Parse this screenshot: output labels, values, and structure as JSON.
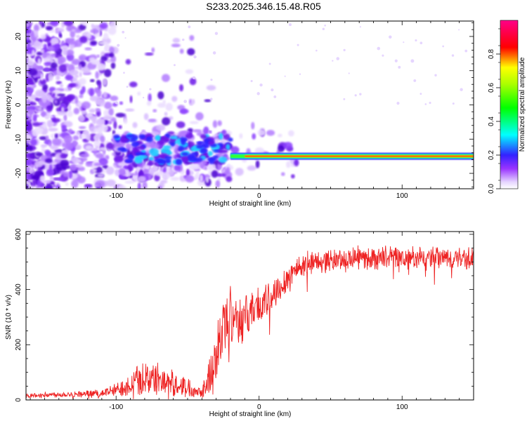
{
  "figure": {
    "title": "S233.2025.346.15.48.R05"
  },
  "chart_data": [
    {
      "type": "heatmap",
      "title": "S233.2025.346.15.48.R05",
      "xlabel": "Height of straight line (km)",
      "ylabel": "Frequency (Hz)",
      "xlim": [
        -163,
        150
      ],
      "ylim": [
        -24.5,
        24.5
      ],
      "xticks": [
        -100,
        0,
        100
      ],
      "xtick_labels": [
        "-100",
        "0",
        "100"
      ],
      "yticks": [
        -20,
        -10,
        0,
        10,
        20
      ],
      "ytick_labels": [
        "-20",
        "-10",
        "0",
        "10",
        "20"
      ],
      "colorbar": {
        "label": "Normalized spectral amplitude",
        "range": [
          0,
          1
        ],
        "ticks": [
          0.0,
          0.2,
          0.4,
          0.6,
          0.8
        ],
        "tick_labels": [
          "0.0",
          "0.2",
          "0.4",
          "0.6",
          "0.8"
        ],
        "colors": [
          "#ffffff",
          "#9933ff",
          "#3333ff",
          "#00ffff",
          "#00ff00",
          "#ffff00",
          "#ff0000",
          "#ff00aa"
        ]
      },
      "features": {
        "ridge_frequency_hz": -15,
        "ridge_start_km": -20,
        "ridge_end_km": 150,
        "noise_region_km": [
          -163,
          -100
        ],
        "speckle_band_km": [
          -100,
          -20
        ]
      }
    },
    {
      "type": "line",
      "title": "",
      "xlabel": "Height of straight line (km)",
      "ylabel": "SNR (10 * v/v)",
      "xlim": [
        -163,
        150
      ],
      "ylim": [
        0,
        610
      ],
      "xticks": [
        -100,
        0,
        100
      ],
      "xtick_labels": [
        "-100",
        "0",
        "100"
      ],
      "yticks": [
        0,
        200,
        400,
        600
      ],
      "ytick_labels": [
        "0",
        "200",
        "400",
        "600"
      ],
      "color": "#ee2222",
      "series": [
        {
          "name": "SNR",
          "x": [
            -163,
            -140,
            -120,
            -110,
            -100,
            -90,
            -80,
            -70,
            -60,
            -50,
            -40,
            -35,
            -30,
            -25,
            -20,
            -15,
            -10,
            -5,
            0,
            5,
            10,
            15,
            20,
            25,
            30,
            40,
            50,
            60,
            70,
            80,
            90,
            100,
            110,
            120,
            130,
            140,
            150
          ],
          "y": [
            15,
            20,
            22,
            25,
            35,
            60,
            80,
            75,
            60,
            45,
            30,
            80,
            160,
            260,
            320,
            300,
            290,
            330,
            340,
            350,
            380,
            420,
            440,
            470,
            490,
            500,
            505,
            510,
            515,
            512,
            518,
            515,
            510,
            512,
            515,
            510,
            512
          ],
          "noise": [
            8,
            10,
            12,
            15,
            25,
            45,
            65,
            55,
            45,
            35,
            20,
            70,
            110,
            130,
            110,
            90,
            80,
            75,
            70,
            65,
            60,
            55,
            55,
            50,
            45,
            40,
            40,
            40,
            40,
            40,
            40,
            40,
            40,
            40,
            40,
            40,
            40
          ]
        }
      ]
    }
  ]
}
